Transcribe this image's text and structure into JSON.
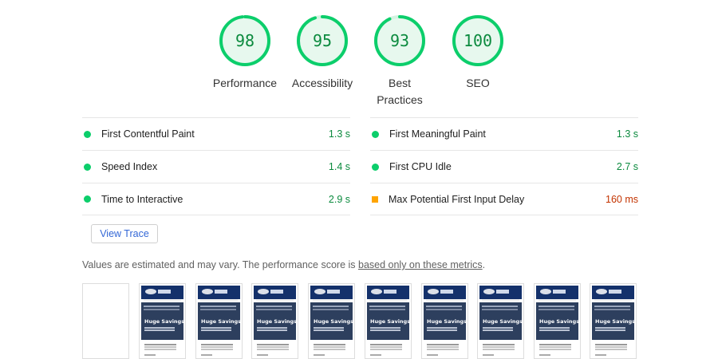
{
  "gauges": [
    {
      "score": "98",
      "label": "Performance",
      "value": 98
    },
    {
      "score": "95",
      "label": "Accessibility",
      "value": 95
    },
    {
      "score": "93",
      "label": "Best Practices",
      "value": 93
    },
    {
      "score": "100",
      "label": "SEO",
      "value": 100
    }
  ],
  "colors": {
    "pass": "#0cce6b",
    "pass_text": "#0b8a3e",
    "average": "#ffa400",
    "average_text": "#c33300",
    "link": "#3367d6"
  },
  "metrics": {
    "left": [
      {
        "name": "First Contentful Paint",
        "value": "1.3 s",
        "status": "pass"
      },
      {
        "name": "Speed Index",
        "value": "1.4 s",
        "status": "pass"
      },
      {
        "name": "Time to Interactive",
        "value": "2.9 s",
        "status": "pass"
      }
    ],
    "right": [
      {
        "name": "First Meaningful Paint",
        "value": "1.3 s",
        "status": "pass"
      },
      {
        "name": "First CPU Idle",
        "value": "2.7 s",
        "status": "pass"
      },
      {
        "name": "Max Potential First Input Delay",
        "value": "160 ms",
        "status": "average"
      }
    ]
  },
  "view_trace_label": "View Trace",
  "note": {
    "text": "Values are estimated and may vary. The performance score is ",
    "link": "based only on these metrics",
    "suffix": "."
  },
  "filmstrip": {
    "hero_text": "Huge Savings"
  }
}
